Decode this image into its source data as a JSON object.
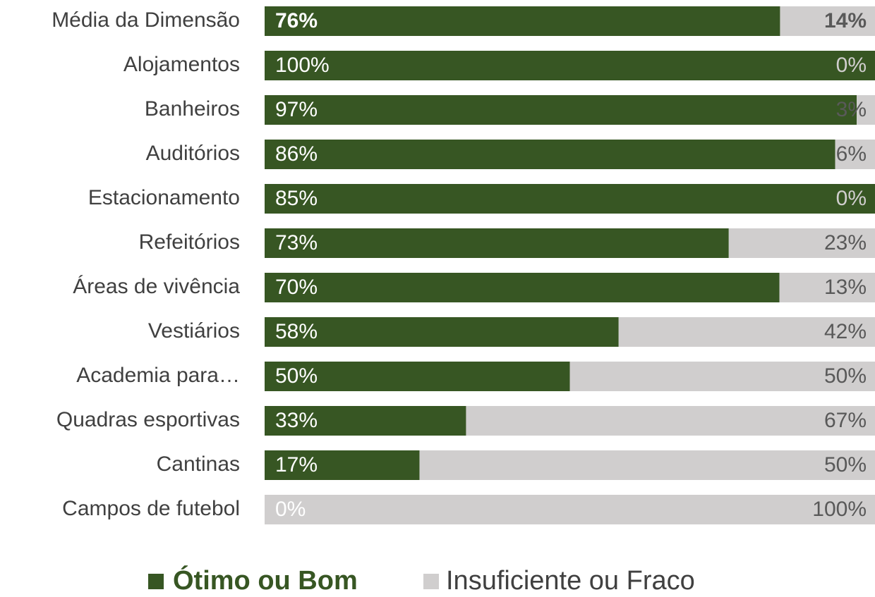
{
  "chart_data": {
    "type": "bar",
    "orientation": "horizontal",
    "stacked": "percent",
    "categories": [
      "Média da Dimensão",
      "Alojamentos",
      "Banheiros",
      "Auditórios",
      "Estacionamento",
      "Refeitórios",
      "Áreas de vivência",
      "Vestiários",
      "Academia para…",
      "Quadras esportivas",
      "Cantinas",
      "Campos de futebol"
    ],
    "series": [
      {
        "name": "Ótimo ou Bom",
        "color": "#375623",
        "values": [
          76,
          100,
          97,
          86,
          85,
          73,
          70,
          58,
          50,
          33,
          17,
          0
        ],
        "value_labels": [
          "76%",
          "100%",
          "97%",
          "86%",
          "85%",
          "73%",
          "70%",
          "58%",
          "50%",
          "33%",
          "17%",
          "0%"
        ]
      },
      {
        "name": "Insuficiente ou Fraco",
        "color": "#d0cece",
        "values": [
          14,
          0,
          3,
          6,
          0,
          23,
          13,
          42,
          50,
          67,
          50,
          100
        ],
        "value_labels": [
          "14%",
          "0%",
          "3%",
          "6%",
          "0%",
          "23%",
          "13%",
          "42%",
          "50%",
          "67%",
          "50%",
          "100%"
        ]
      }
    ],
    "legend": "bottom"
  }
}
